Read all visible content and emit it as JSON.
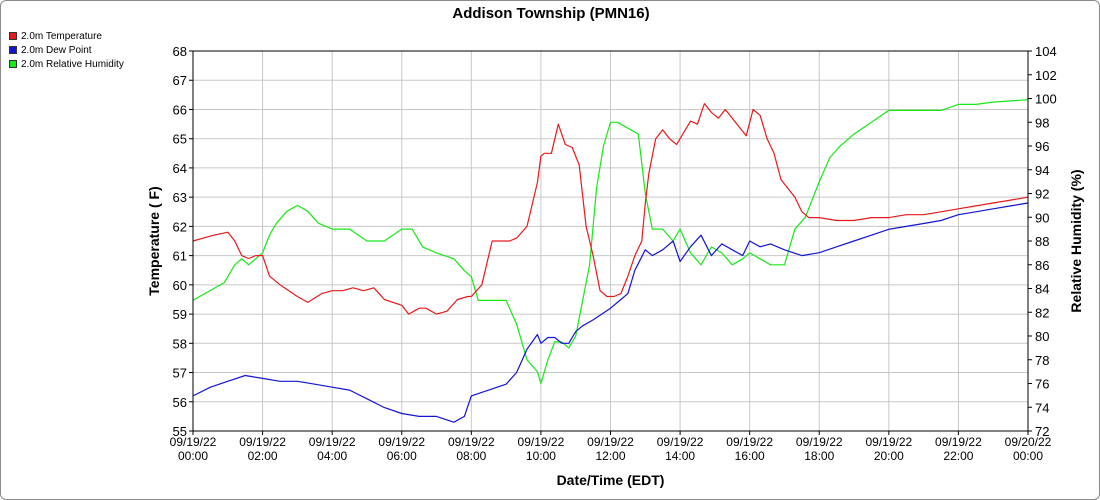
{
  "chart_data": {
    "type": "line",
    "title": "Addison Township (PMN16)",
    "xlabel": "Date/Time (EDT)",
    "ylabel_left": "Temperature ( F)",
    "ylabel_right": "Relative Humidity (%)",
    "grid": true,
    "legend_position": "top-left",
    "x_ticks": [
      {
        "date": "09/19/22",
        "time": "00:00"
      },
      {
        "date": "09/19/22",
        "time": "02:00"
      },
      {
        "date": "09/19/22",
        "time": "04:00"
      },
      {
        "date": "09/19/22",
        "time": "06:00"
      },
      {
        "date": "09/19/22",
        "time": "08:00"
      },
      {
        "date": "09/19/22",
        "time": "10:00"
      },
      {
        "date": "09/19/22",
        "time": "12:00"
      },
      {
        "date": "09/19/22",
        "time": "14:00"
      },
      {
        "date": "09/19/22",
        "time": "16:00"
      },
      {
        "date": "09/19/22",
        "time": "18:00"
      },
      {
        "date": "09/19/22",
        "time": "20:00"
      },
      {
        "date": "09/19/22",
        "time": "22:00"
      },
      {
        "date": "09/20/22",
        "time": "00:00"
      }
    ],
    "xlim_hours": [
      0,
      24
    ],
    "ylim_left": [
      55,
      68
    ],
    "yticks_left": [
      "55",
      "56",
      "57",
      "58",
      "59",
      "60",
      "61",
      "62",
      "63",
      "64",
      "65",
      "66",
      "67",
      "68"
    ],
    "ylim_right": [
      72,
      104
    ],
    "yticks_right": [
      "72",
      "74",
      "76",
      "78",
      "80",
      "82",
      "84",
      "86",
      "88",
      "90",
      "92",
      "94",
      "96",
      "98",
      "100",
      "102",
      "104"
    ],
    "series": [
      {
        "name": "2.0m Temperature",
        "color": "#e8191b",
        "axis": "left",
        "x": [
          0,
          0.3,
          0.6,
          1.0,
          1.2,
          1.4,
          1.6,
          1.8,
          2.0,
          2.2,
          2.5,
          3.0,
          3.3,
          3.7,
          4.0,
          4.3,
          4.6,
          4.9,
          5.2,
          5.5,
          6.0,
          6.2,
          6.5,
          6.7,
          7.0,
          7.3,
          7.6,
          7.9,
          8.0,
          8.3,
          8.6,
          8.9,
          9.1,
          9.3,
          9.6,
          9.9,
          10.0,
          10.1,
          10.3,
          10.5,
          10.7,
          10.9,
          11.1,
          11.3,
          11.5,
          11.7,
          11.9,
          12.1,
          12.3,
          12.5,
          12.7,
          12.9,
          13.0,
          13.1,
          13.3,
          13.5,
          13.7,
          13.9,
          14.1,
          14.3,
          14.5,
          14.7,
          14.9,
          15.1,
          15.3,
          15.5,
          15.7,
          15.9,
          16.1,
          16.3,
          16.5,
          16.7,
          16.9,
          17.1,
          17.3,
          17.5,
          17.7,
          17.9,
          18.0,
          18.5,
          19.0,
          19.5,
          20.0,
          20.5,
          21.0,
          21.5,
          22.0,
          22.5,
          23.0,
          23.5,
          24.0
        ],
        "values": [
          61.5,
          61.6,
          61.7,
          61.8,
          61.5,
          61.0,
          60.9,
          61.0,
          61.0,
          60.3,
          60.0,
          59.6,
          59.4,
          59.7,
          59.8,
          59.8,
          59.9,
          59.8,
          59.9,
          59.5,
          59.3,
          59.0,
          59.2,
          59.2,
          59.0,
          59.1,
          59.5,
          59.6,
          59.6,
          60.0,
          61.5,
          61.5,
          61.5,
          61.6,
          62.0,
          63.5,
          64.4,
          64.5,
          64.5,
          65.5,
          64.8,
          64.7,
          64.1,
          62.0,
          61.0,
          59.8,
          59.6,
          59.6,
          59.7,
          60.3,
          61.0,
          61.5,
          62.8,
          63.8,
          65.0,
          65.3,
          65.0,
          64.8,
          65.2,
          65.6,
          65.5,
          66.2,
          65.9,
          65.7,
          66.0,
          65.7,
          65.4,
          65.1,
          66.0,
          65.8,
          65.0,
          64.5,
          63.6,
          63.3,
          63.0,
          62.5,
          62.3,
          62.3,
          62.3,
          62.2,
          62.2,
          62.3,
          62.3,
          62.4,
          62.4,
          62.5,
          62.6,
          62.7,
          62.8,
          62.9,
          63.0
        ]
      },
      {
        "name": "2.0m Dew Point",
        "color": "#1414d6",
        "axis": "left",
        "x": [
          0,
          0.5,
          1.0,
          1.5,
          2.0,
          2.5,
          3.0,
          3.5,
          4.0,
          4.5,
          5.0,
          5.5,
          6.0,
          6.5,
          7.0,
          7.5,
          7.8,
          8.0,
          8.5,
          9.0,
          9.3,
          9.6,
          9.9,
          10.0,
          10.2,
          10.4,
          10.6,
          10.8,
          11.0,
          11.2,
          11.5,
          12.0,
          12.3,
          12.5,
          12.7,
          13.0,
          13.2,
          13.5,
          13.8,
          14.0,
          14.3,
          14.6,
          14.9,
          15.2,
          15.5,
          15.8,
          16.0,
          16.3,
          16.6,
          17.0,
          17.5,
          18.0,
          18.5,
          19.0,
          19.5,
          20.0,
          20.5,
          21.0,
          21.5,
          22.0,
          22.5,
          23.0,
          23.5,
          24.0
        ],
        "values": [
          56.2,
          56.5,
          56.7,
          56.9,
          56.8,
          56.7,
          56.7,
          56.6,
          56.5,
          56.4,
          56.1,
          55.8,
          55.6,
          55.5,
          55.5,
          55.3,
          55.5,
          56.2,
          56.4,
          56.6,
          57.0,
          57.8,
          58.3,
          58.0,
          58.2,
          58.2,
          58.0,
          58.0,
          58.4,
          58.6,
          58.8,
          59.2,
          59.5,
          59.7,
          60.5,
          61.2,
          61.0,
          61.2,
          61.5,
          60.8,
          61.3,
          61.7,
          61.0,
          61.4,
          61.2,
          61.0,
          61.5,
          61.3,
          61.4,
          61.2,
          61.0,
          61.1,
          61.3,
          61.5,
          61.7,
          61.9,
          62.0,
          62.1,
          62.2,
          62.4,
          62.5,
          62.6,
          62.7,
          62.8
        ]
      },
      {
        "name": "2.0m Relative Humidity",
        "color": "#18e818",
        "axis": "right",
        "x": [
          0,
          0.3,
          0.6,
          0.9,
          1.2,
          1.4,
          1.6,
          1.8,
          2.0,
          2.2,
          2.4,
          2.7,
          3.0,
          3.3,
          3.6,
          4.0,
          4.5,
          5.0,
          5.5,
          6.0,
          6.3,
          6.6,
          7.0,
          7.5,
          7.8,
          8.0,
          8.2,
          8.5,
          9.0,
          9.3,
          9.6,
          9.9,
          10.0,
          10.2,
          10.4,
          10.6,
          10.8,
          11.0,
          11.2,
          11.4,
          11.6,
          11.8,
          12.0,
          12.2,
          12.5,
          12.8,
          13.0,
          13.2,
          13.5,
          13.8,
          14.0,
          14.3,
          14.6,
          14.9,
          15.2,
          15.5,
          15.8,
          16.0,
          16.3,
          16.6,
          17.0,
          17.3,
          17.6,
          18.0,
          18.3,
          18.6,
          19.0,
          19.5,
          20.0,
          20.5,
          21.0,
          21.5,
          22.0,
          22.5,
          23.0,
          23.5,
          24.0
        ],
        "values": [
          83,
          83.5,
          84,
          84.5,
          86,
          86.5,
          86,
          86.5,
          87,
          88.5,
          89.5,
          90.5,
          91,
          90.5,
          89.5,
          89,
          89,
          88,
          88,
          89,
          89,
          87.5,
          87,
          86.5,
          85.5,
          85,
          83,
          83,
          83,
          81,
          78,
          77,
          76,
          78,
          79.5,
          79.5,
          79,
          80,
          83,
          86,
          92.5,
          96,
          98,
          98,
          97.5,
          97,
          92,
          89,
          89,
          88,
          89,
          87,
          86,
          87.5,
          87,
          86,
          86.5,
          87,
          86.5,
          86,
          86,
          89,
          90,
          93,
          95,
          96,
          97,
          98,
          99,
          99,
          99,
          99,
          99.5,
          99.5,
          99.7,
          99.8,
          99.9
        ]
      }
    ]
  }
}
